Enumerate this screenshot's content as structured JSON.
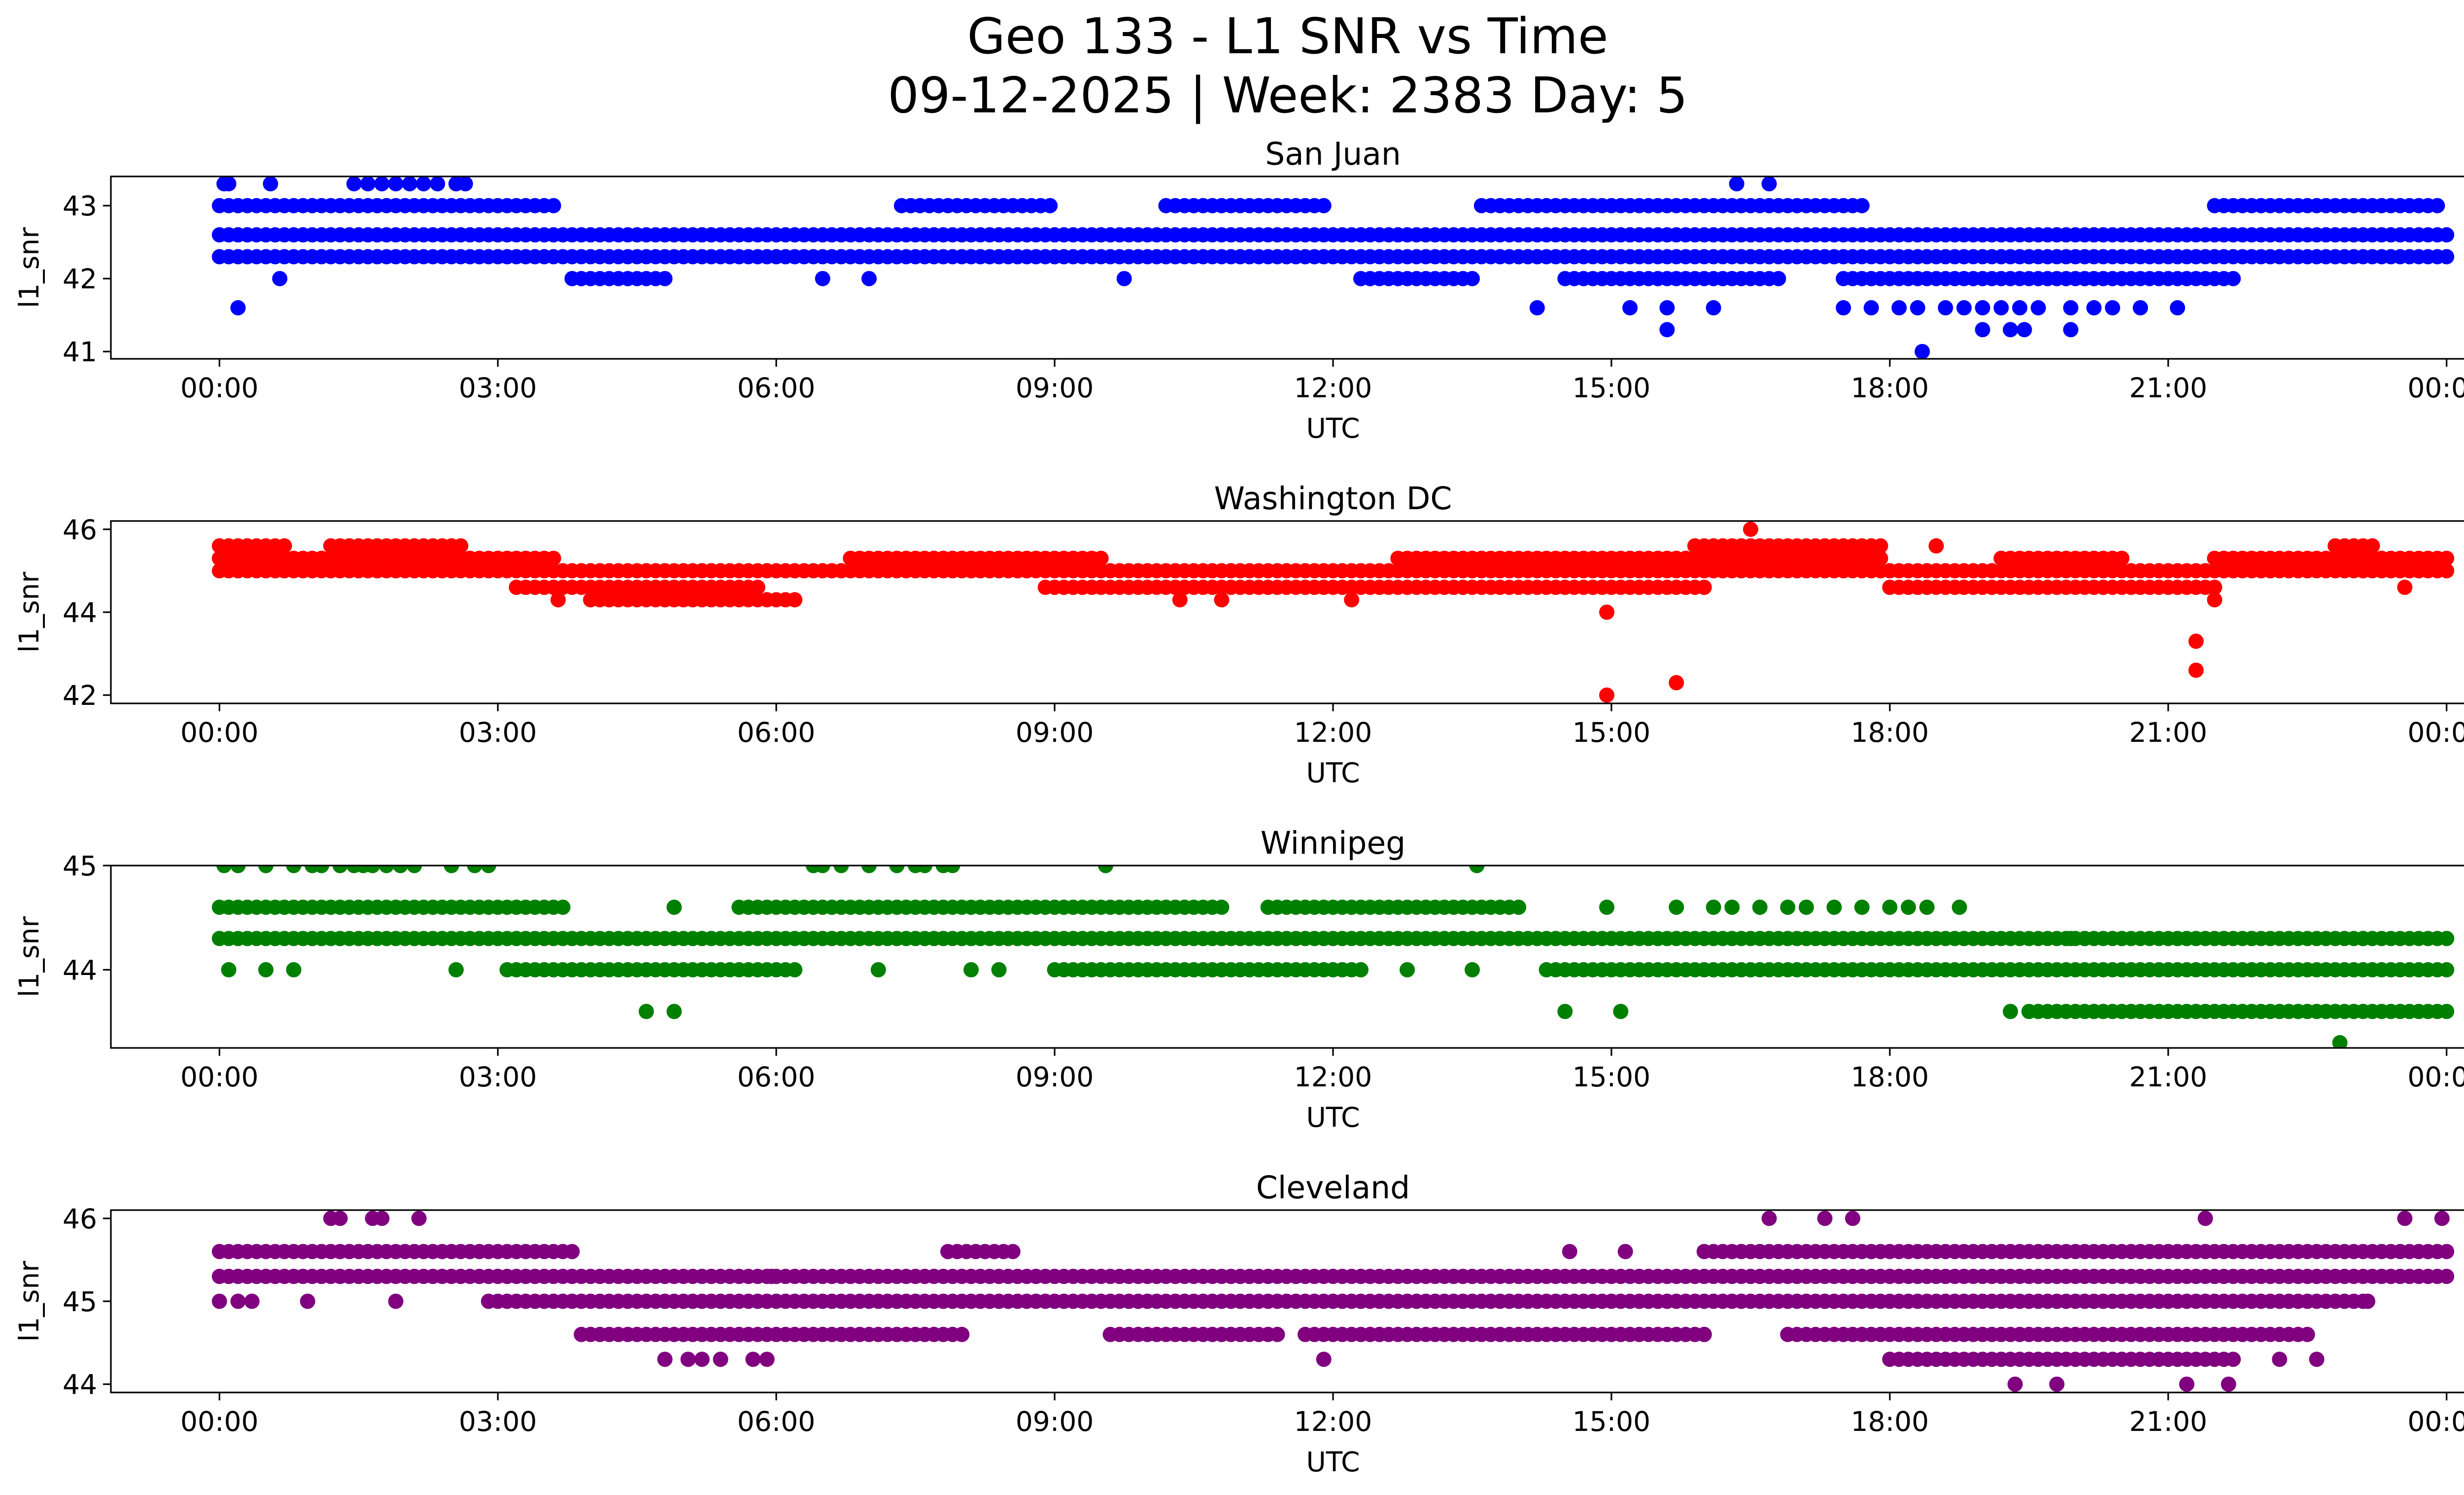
{
  "figure": {
    "title_line1": "Geo 133 - L1 SNR vs Time",
    "title_line2": "09-12-2025 | Week: 2383 Day: 5"
  },
  "chart_data": [
    {
      "type": "scatter",
      "title": "San Juan",
      "xlabel": "UTC",
      "ylabel": "l1_snr",
      "color": "#0000ff",
      "x_unit": "hours UTC",
      "xlim": [
        -1.17,
        25.17
      ],
      "ylim": [
        40.9,
        43.4
      ],
      "x_ticks": [
        0,
        3,
        6,
        9,
        12,
        15,
        18,
        21,
        24
      ],
      "x_tick_labels": [
        "00:00",
        "03:00",
        "06:00",
        "09:00",
        "12:00",
        "15:00",
        "18:00",
        "21:00",
        "00:00"
      ],
      "y_ticks": [
        41,
        42,
        43
      ],
      "y_tick_labels": [
        "41",
        "42",
        "43"
      ],
      "bands": [
        {
          "y": 42.3,
          "x_start": 0,
          "x_end": 24
        },
        {
          "y": 42.6,
          "x_start": 0,
          "x_end": 24
        },
        {
          "y": 43.0,
          "segments": [
            [
              0,
              3.6
            ],
            [
              7.35,
              9.0
            ],
            [
              10.2,
              11.9
            ],
            [
              13.6,
              17.7
            ],
            [
              21.5,
              23.9
            ]
          ]
        },
        {
          "y": 42.0,
          "segments": [
            [
              3.8,
              4.8
            ],
            [
              12.3,
              13.5
            ],
            [
              14.5,
              16.8
            ],
            [
              17.5,
              21.7
            ]
          ]
        }
      ],
      "points": [
        {
          "x": 0.05,
          "y": 43.3
        },
        {
          "x": 0.1,
          "y": 43.3
        },
        {
          "x": 0.55,
          "y": 43.3
        },
        {
          "x": 1.45,
          "y": 43.3
        },
        {
          "x": 1.6,
          "y": 43.3
        },
        {
          "x": 1.75,
          "y": 43.3
        },
        {
          "x": 1.9,
          "y": 43.3
        },
        {
          "x": 2.05,
          "y": 43.3
        },
        {
          "x": 2.2,
          "y": 43.3
        },
        {
          "x": 2.35,
          "y": 43.3
        },
        {
          "x": 2.55,
          "y": 43.3
        },
        {
          "x": 2.65,
          "y": 43.3
        },
        {
          "x": 16.35,
          "y": 43.3
        },
        {
          "x": 16.7,
          "y": 43.3
        },
        {
          "x": 0.2,
          "y": 41.6
        },
        {
          "x": 0.65,
          "y": 42.0
        },
        {
          "x": 6.5,
          "y": 42.0
        },
        {
          "x": 7.0,
          "y": 42.0
        },
        {
          "x": 9.75,
          "y": 42.0
        },
        {
          "x": 14.2,
          "y": 41.6
        },
        {
          "x": 15.2,
          "y": 41.6
        },
        {
          "x": 15.6,
          "y": 41.6
        },
        {
          "x": 15.6,
          "y": 41.3
        },
        {
          "x": 16.1,
          "y": 41.6
        },
        {
          "x": 17.5,
          "y": 41.6
        },
        {
          "x": 17.8,
          "y": 41.6
        },
        {
          "x": 18.1,
          "y": 41.6
        },
        {
          "x": 18.3,
          "y": 41.6
        },
        {
          "x": 18.6,
          "y": 41.6
        },
        {
          "x": 18.8,
          "y": 41.6
        },
        {
          "x": 19.0,
          "y": 41.6
        },
        {
          "x": 19.2,
          "y": 41.6
        },
        {
          "x": 19.4,
          "y": 41.6
        },
        {
          "x": 19.6,
          "y": 41.6
        },
        {
          "x": 19.95,
          "y": 41.6
        },
        {
          "x": 20.2,
          "y": 41.6
        },
        {
          "x": 20.4,
          "y": 41.6
        },
        {
          "x": 20.7,
          "y": 41.6
        },
        {
          "x": 21.1,
          "y": 41.6
        },
        {
          "x": 18.35,
          "y": 41.0
        },
        {
          "x": 19.0,
          "y": 41.3
        },
        {
          "x": 19.3,
          "y": 41.3
        },
        {
          "x": 19.45,
          "y": 41.3
        },
        {
          "x": 19.95,
          "y": 41.3
        }
      ]
    },
    {
      "type": "scatter",
      "title": "Washington DC",
      "xlabel": "UTC",
      "ylabel": "l1_snr",
      "color": "#ff0000",
      "x_unit": "hours UTC",
      "xlim": [
        -1.17,
        25.17
      ],
      "ylim": [
        41.8,
        46.2
      ],
      "x_ticks": [
        0,
        3,
        6,
        9,
        12,
        15,
        18,
        21,
        24
      ],
      "x_tick_labels": [
        "00:00",
        "03:00",
        "06:00",
        "09:00",
        "12:00",
        "15:00",
        "18:00",
        "21:00",
        "00:00"
      ],
      "y_ticks": [
        42,
        44,
        46
      ],
      "y_tick_labels": [
        "42",
        "44",
        "46"
      ],
      "bands": [
        {
          "y": 45.0,
          "x_start": 0,
          "x_end": 24
        },
        {
          "y": 45.3,
          "segments": [
            [
              0,
              3.6
            ],
            [
              6.8,
              9.5
            ],
            [
              12.7,
              17.9
            ],
            [
              19.2,
              20.5
            ],
            [
              21.5,
              24
            ]
          ]
        },
        {
          "y": 44.6,
          "segments": [
            [
              3.2,
              5.8
            ],
            [
              8.9,
              16.0
            ],
            [
              18.0,
              21.5
            ]
          ]
        },
        {
          "y": 44.3,
          "segments": [
            [
              4.0,
              6.2
            ]
          ]
        },
        {
          "y": 45.6,
          "segments": [
            [
              0,
              0.7
            ],
            [
              1.2,
              2.6
            ],
            [
              15.9,
              17.9
            ],
            [
              22.8,
              23.2
            ]
          ]
        }
      ],
      "points": [
        {
          "x": 14.95,
          "y": 44.0
        },
        {
          "x": 14.95,
          "y": 42.0
        },
        {
          "x": 15.7,
          "y": 42.3
        },
        {
          "x": 21.3,
          "y": 43.3
        },
        {
          "x": 21.3,
          "y": 42.6
        },
        {
          "x": 16.5,
          "y": 46.0
        },
        {
          "x": 18.5,
          "y": 45.6
        },
        {
          "x": 23.55,
          "y": 44.6
        },
        {
          "x": 3.65,
          "y": 44.3
        },
        {
          "x": 10.35,
          "y": 44.3
        },
        {
          "x": 10.8,
          "y": 44.3
        },
        {
          "x": 12.2,
          "y": 44.3
        },
        {
          "x": 21.5,
          "y": 44.3
        }
      ]
    },
    {
      "type": "scatter",
      "title": "Winnipeg",
      "xlabel": "UTC",
      "ylabel": "l1_snr",
      "color": "#008000",
      "x_unit": "hours UTC",
      "xlim": [
        -1.17,
        25.17
      ],
      "ylim": [
        43.25,
        45.0
      ],
      "x_ticks": [
        0,
        3,
        6,
        9,
        12,
        15,
        18,
        21,
        24
      ],
      "x_tick_labels": [
        "00:00",
        "03:00",
        "06:00",
        "09:00",
        "12:00",
        "15:00",
        "18:00",
        "21:00",
        "00:00"
      ],
      "y_ticks": [
        44,
        45
      ],
      "y_tick_labels": [
        "44",
        "45"
      ],
      "bands": [
        {
          "y": 44.3,
          "x_start": 0,
          "x_end": 24
        },
        {
          "y": 44.6,
          "segments": [
            [
              0,
              3.7
            ],
            [
              5.6,
              10.8
            ],
            [
              11.3,
              14.0
            ]
          ]
        },
        {
          "y": 44.0,
          "segments": [
            [
              3.1,
              6.2
            ],
            [
              9.0,
              12.3
            ],
            [
              14.3,
              24
            ]
          ]
        },
        {
          "y": 43.6,
          "segments": [
            [
              19.6,
              24
            ]
          ]
        }
      ],
      "points": [
        {
          "x": 0.05,
          "y": 45.0
        },
        {
          "x": 0.2,
          "y": 45.0
        },
        {
          "x": 0.5,
          "y": 45.0
        },
        {
          "x": 0.8,
          "y": 45.0
        },
        {
          "x": 1.0,
          "y": 45.0
        },
        {
          "x": 1.1,
          "y": 45.0
        },
        {
          "x": 1.3,
          "y": 45.0
        },
        {
          "x": 1.45,
          "y": 45.0
        },
        {
          "x": 1.55,
          "y": 45.0
        },
        {
          "x": 1.65,
          "y": 45.0
        },
        {
          "x": 1.8,
          "y": 45.0
        },
        {
          "x": 1.95,
          "y": 45.0
        },
        {
          "x": 2.1,
          "y": 45.0
        },
        {
          "x": 2.5,
          "y": 45.0
        },
        {
          "x": 2.75,
          "y": 45.0
        },
        {
          "x": 2.9,
          "y": 45.0
        },
        {
          "x": 6.4,
          "y": 45.0
        },
        {
          "x": 6.5,
          "y": 45.0
        },
        {
          "x": 6.7,
          "y": 45.0
        },
        {
          "x": 7.0,
          "y": 45.0
        },
        {
          "x": 7.3,
          "y": 45.0
        },
        {
          "x": 7.5,
          "y": 45.0
        },
        {
          "x": 7.6,
          "y": 45.0
        },
        {
          "x": 7.8,
          "y": 45.0
        },
        {
          "x": 7.9,
          "y": 45.0
        },
        {
          "x": 9.55,
          "y": 45.0
        },
        {
          "x": 13.55,
          "y": 45.0
        },
        {
          "x": 0.1,
          "y": 44.0
        },
        {
          "x": 0.5,
          "y": 44.0
        },
        {
          "x": 0.8,
          "y": 44.0
        },
        {
          "x": 2.55,
          "y": 44.0
        },
        {
          "x": 7.1,
          "y": 44.0
        },
        {
          "x": 8.1,
          "y": 44.0
        },
        {
          "x": 8.4,
          "y": 44.0
        },
        {
          "x": 12.8,
          "y": 44.0
        },
        {
          "x": 13.5,
          "y": 44.0
        },
        {
          "x": 4.6,
          "y": 43.6
        },
        {
          "x": 4.9,
          "y": 43.6
        },
        {
          "x": 14.5,
          "y": 43.6
        },
        {
          "x": 15.1,
          "y": 43.6
        },
        {
          "x": 19.3,
          "y": 43.6
        },
        {
          "x": 19.5,
          "y": 43.6
        },
        {
          "x": 22.85,
          "y": 43.3
        },
        {
          "x": 4.9,
          "y": 44.6
        },
        {
          "x": 14.95,
          "y": 44.6
        },
        {
          "x": 15.7,
          "y": 44.6
        },
        {
          "x": 16.1,
          "y": 44.6
        },
        {
          "x": 16.3,
          "y": 44.6
        },
        {
          "x": 16.6,
          "y": 44.6
        },
        {
          "x": 16.9,
          "y": 44.6
        },
        {
          "x": 17.1,
          "y": 44.6
        },
        {
          "x": 17.4,
          "y": 44.6
        },
        {
          "x": 17.7,
          "y": 44.6
        },
        {
          "x": 18.0,
          "y": 44.6
        },
        {
          "x": 18.2,
          "y": 44.6
        },
        {
          "x": 18.4,
          "y": 44.6
        },
        {
          "x": 18.75,
          "y": 44.6
        },
        {
          "x": 19.95,
          "y": 44.3
        },
        {
          "x": 20.1,
          "y": 44.3
        },
        {
          "x": 20.5,
          "y": 44.3
        },
        {
          "x": 21.1,
          "y": 44.3
        },
        {
          "x": 21.2,
          "y": 44.3
        },
        {
          "x": 21.6,
          "y": 44.3
        },
        {
          "x": 21.9,
          "y": 44.3
        },
        {
          "x": 22.1,
          "y": 44.3
        },
        {
          "x": 23.1,
          "y": 44.3
        }
      ]
    },
    {
      "type": "scatter",
      "title": "Cleveland",
      "xlabel": "UTC",
      "ylabel": "l1_snr",
      "color": "#800080",
      "x_unit": "hours UTC",
      "xlim": [
        -1.17,
        25.17
      ],
      "ylim": [
        43.9,
        46.1
      ],
      "x_ticks": [
        0,
        3,
        6,
        9,
        12,
        15,
        18,
        21,
        24
      ],
      "x_tick_labels": [
        "00:00",
        "03:00",
        "06:00",
        "09:00",
        "12:00",
        "15:00",
        "18:00",
        "21:00",
        "00:00"
      ],
      "y_ticks": [
        44,
        45,
        46
      ],
      "y_tick_labels": [
        "44",
        "45",
        "46"
      ],
      "bands": [
        {
          "y": 45.3,
          "x_start": 0,
          "x_end": 24
        },
        {
          "y": 45.6,
          "segments": [
            [
              0,
              3.8
            ],
            [
              7.85,
              8.6
            ],
            [
              16.0,
              24
            ]
          ]
        },
        {
          "y": 45.0,
          "segments": [
            [
              2.9,
              23.1
            ]
          ]
        },
        {
          "y": 44.6,
          "segments": [
            [
              3.9,
              8.0
            ],
            [
              9.6,
              11.4
            ],
            [
              11.7,
              16.0
            ],
            [
              16.9,
              22.5
            ]
          ]
        },
        {
          "y": 44.3,
          "segments": [
            [
              18.0,
              21.7
            ]
          ]
        }
      ],
      "points": [
        {
          "x": 0.0,
          "y": 45.0
        },
        {
          "x": 0.2,
          "y": 45.0
        },
        {
          "x": 0.35,
          "y": 45.0
        },
        {
          "x": 0.95,
          "y": 45.0
        },
        {
          "x": 1.9,
          "y": 45.0
        },
        {
          "x": 23.15,
          "y": 45.0
        },
        {
          "x": 1.2,
          "y": 46.0
        },
        {
          "x": 1.3,
          "y": 46.0
        },
        {
          "x": 1.65,
          "y": 46.0
        },
        {
          "x": 1.75,
          "y": 46.0
        },
        {
          "x": 2.15,
          "y": 46.0
        },
        {
          "x": 16.7,
          "y": 46.0
        },
        {
          "x": 17.3,
          "y": 46.0
        },
        {
          "x": 17.6,
          "y": 46.0
        },
        {
          "x": 21.4,
          "y": 46.0
        },
        {
          "x": 23.55,
          "y": 46.0
        },
        {
          "x": 23.95,
          "y": 46.0
        },
        {
          "x": 4.8,
          "y": 44.3
        },
        {
          "x": 5.05,
          "y": 44.3
        },
        {
          "x": 5.2,
          "y": 44.3
        },
        {
          "x": 5.4,
          "y": 44.3
        },
        {
          "x": 5.75,
          "y": 44.3
        },
        {
          "x": 5.9,
          "y": 44.3
        },
        {
          "x": 11.9,
          "y": 44.3
        },
        {
          "x": 22.2,
          "y": 44.3
        },
        {
          "x": 22.6,
          "y": 44.3
        },
        {
          "x": 19.35,
          "y": 44.0
        },
        {
          "x": 19.8,
          "y": 44.0
        },
        {
          "x": 21.2,
          "y": 44.0
        },
        {
          "x": 21.65,
          "y": 44.0
        },
        {
          "x": 5.95,
          "y": 45.3
        },
        {
          "x": 14.55,
          "y": 45.6
        },
        {
          "x": 15.15,
          "y": 45.6
        },
        {
          "x": 16.0,
          "y": 44.6
        }
      ]
    }
  ]
}
